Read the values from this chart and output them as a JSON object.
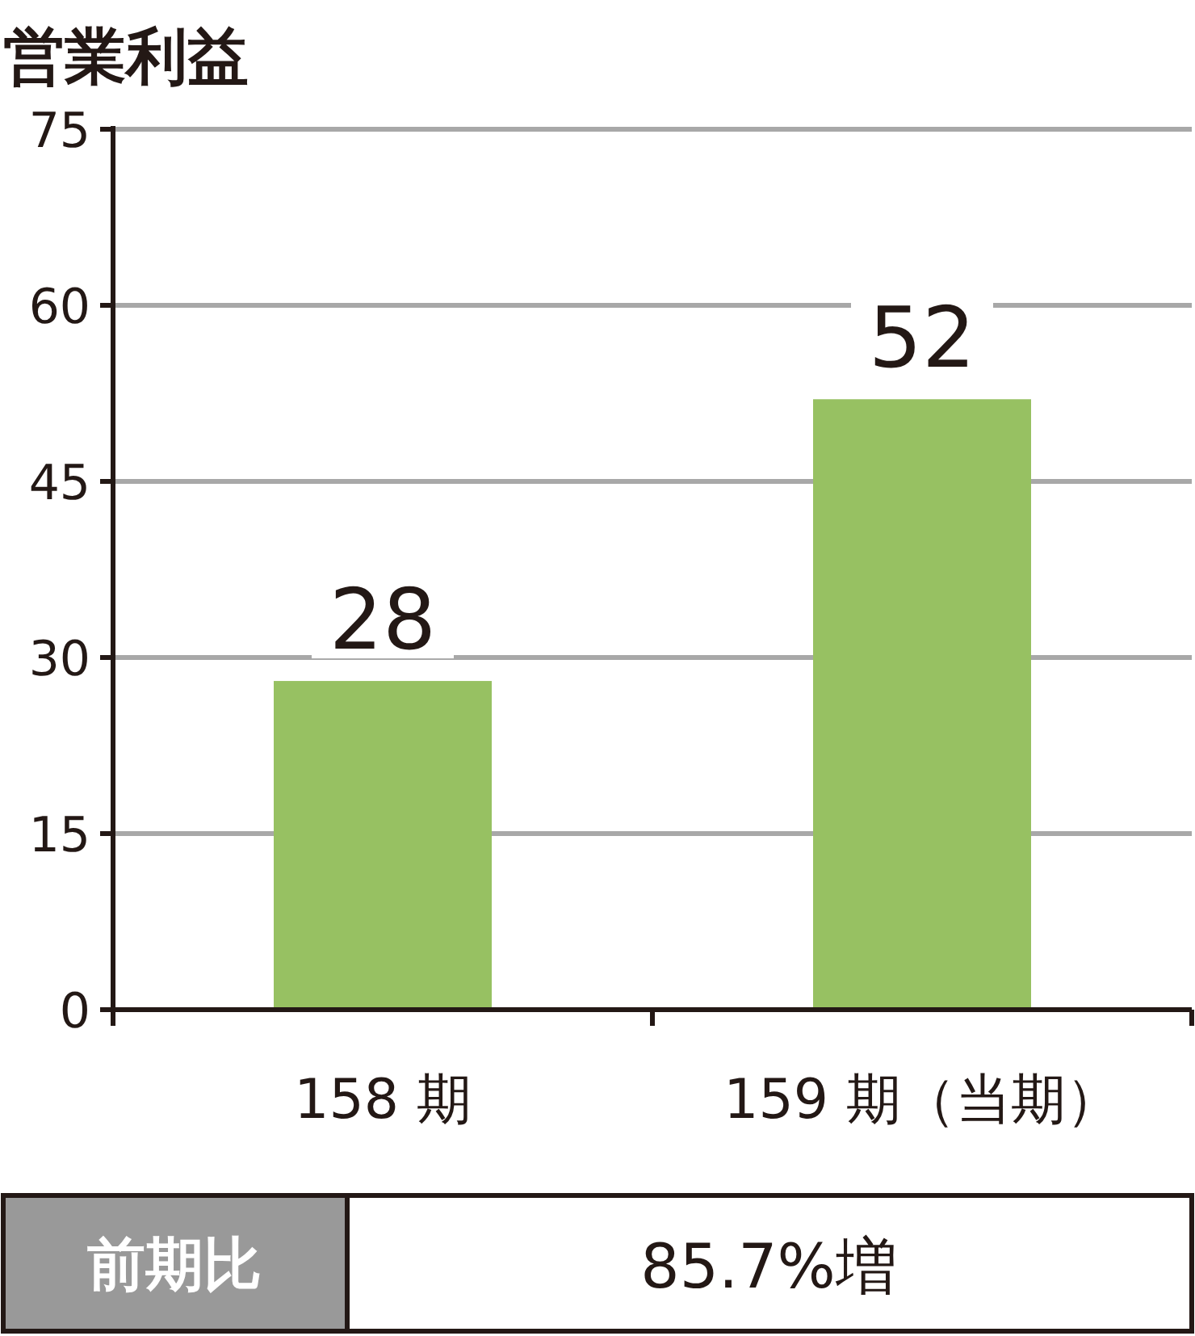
{
  "chart_data": {
    "type": "bar",
    "title": "営業利益",
    "categories": [
      "158 期",
      "159 期（当期）"
    ],
    "values": [
      28,
      52
    ],
    "color": "#97c162",
    "ylim": [
      0,
      75
    ],
    "yticks": [
      0,
      15,
      30,
      45,
      60,
      75
    ],
    "grid": "y",
    "data_labels": true,
    "annotations": [
      "前期比",
      "85.7%増"
    ]
  }
}
